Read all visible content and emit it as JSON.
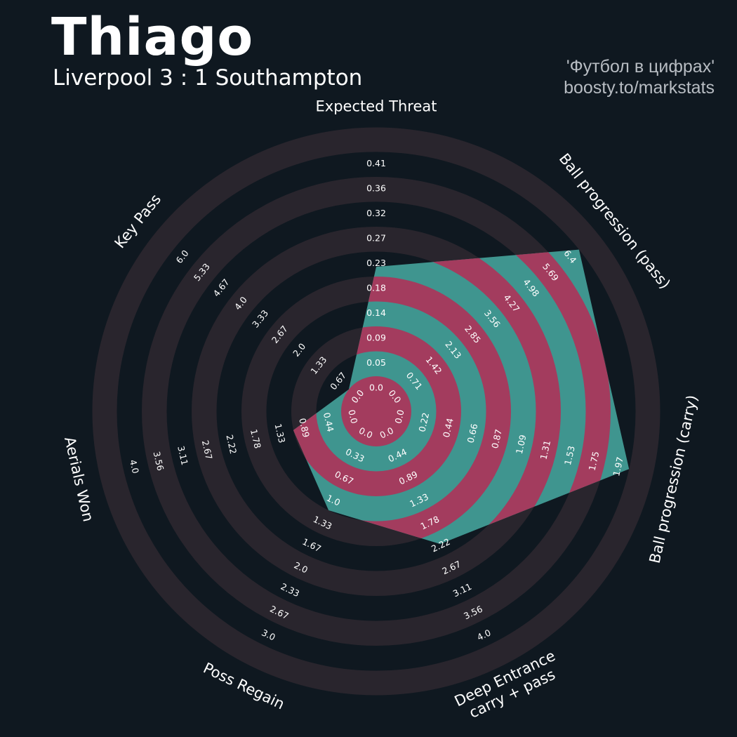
{
  "header": {
    "player": "Thiago",
    "match": "Liverpool 3 : 1 Southampton"
  },
  "credit": {
    "line1": "'Футбол в цифрах'",
    "line2": "boosty.to/markstats"
  },
  "colors": {
    "background": "#0f1820",
    "ring_band": "#29252d",
    "teal": "#3f958f",
    "crimson": "#a33c5e",
    "text": "#ffffff"
  },
  "chart_data": {
    "type": "radar",
    "title": "Thiago",
    "subtitle": "Liverpool 3 : 1 Southampton",
    "axes": [
      {
        "label": "Expected Threat",
        "value": 0.2,
        "ticks": [
          "0.0",
          "0.05",
          "0.09",
          "0.14",
          "0.18",
          "0.23",
          "0.27",
          "0.32",
          "0.36",
          "0.41"
        ]
      },
      {
        "label": "Ball progression (pass)",
        "value": 6.4,
        "ticks": [
          "0.0",
          "0.71",
          "1.42",
          "2.13",
          "2.85",
          "3.56",
          "4.27",
          "4.98",
          "5.69",
          "6.4"
        ]
      },
      {
        "label": "Ball progression (carry)",
        "value": 1.97,
        "ticks": [
          "0.0",
          "0.22",
          "0.44",
          "0.66",
          "0.87",
          "1.09",
          "1.31",
          "1.53",
          "1.75",
          "1.97"
        ]
      },
      {
        "label": "Deep Entrance\ncarry + pass",
        "value": 2.0,
        "ticks": [
          "0.0",
          "0.44",
          "0.89",
          "1.33",
          "1.78",
          "2.22",
          "2.67",
          "3.11",
          "3.56",
          "4.0"
        ]
      },
      {
        "label": "Poss Regain",
        "value": 1.0,
        "ticks": [
          "0.0",
          "0.33",
          "0.67",
          "1.0",
          "1.33",
          "1.67",
          "2.0",
          "2.33",
          "2.67",
          "3.0"
        ]
      },
      {
        "label": "Aerials Won",
        "value": 0.89,
        "ticks": [
          "0.0",
          "0.44",
          "0.89",
          "1.33",
          "1.78",
          "2.22",
          "2.67",
          "3.11",
          "3.56",
          "4.0"
        ]
      },
      {
        "label": "Key Pass",
        "value": 0.0,
        "ticks": [
          "0.0",
          "0.67",
          "1.33",
          "2.0",
          "2.67",
          "3.33",
          "4.0",
          "4.67",
          "5.33",
          "6.0"
        ]
      }
    ],
    "grid": "alternating concentric bands"
  }
}
